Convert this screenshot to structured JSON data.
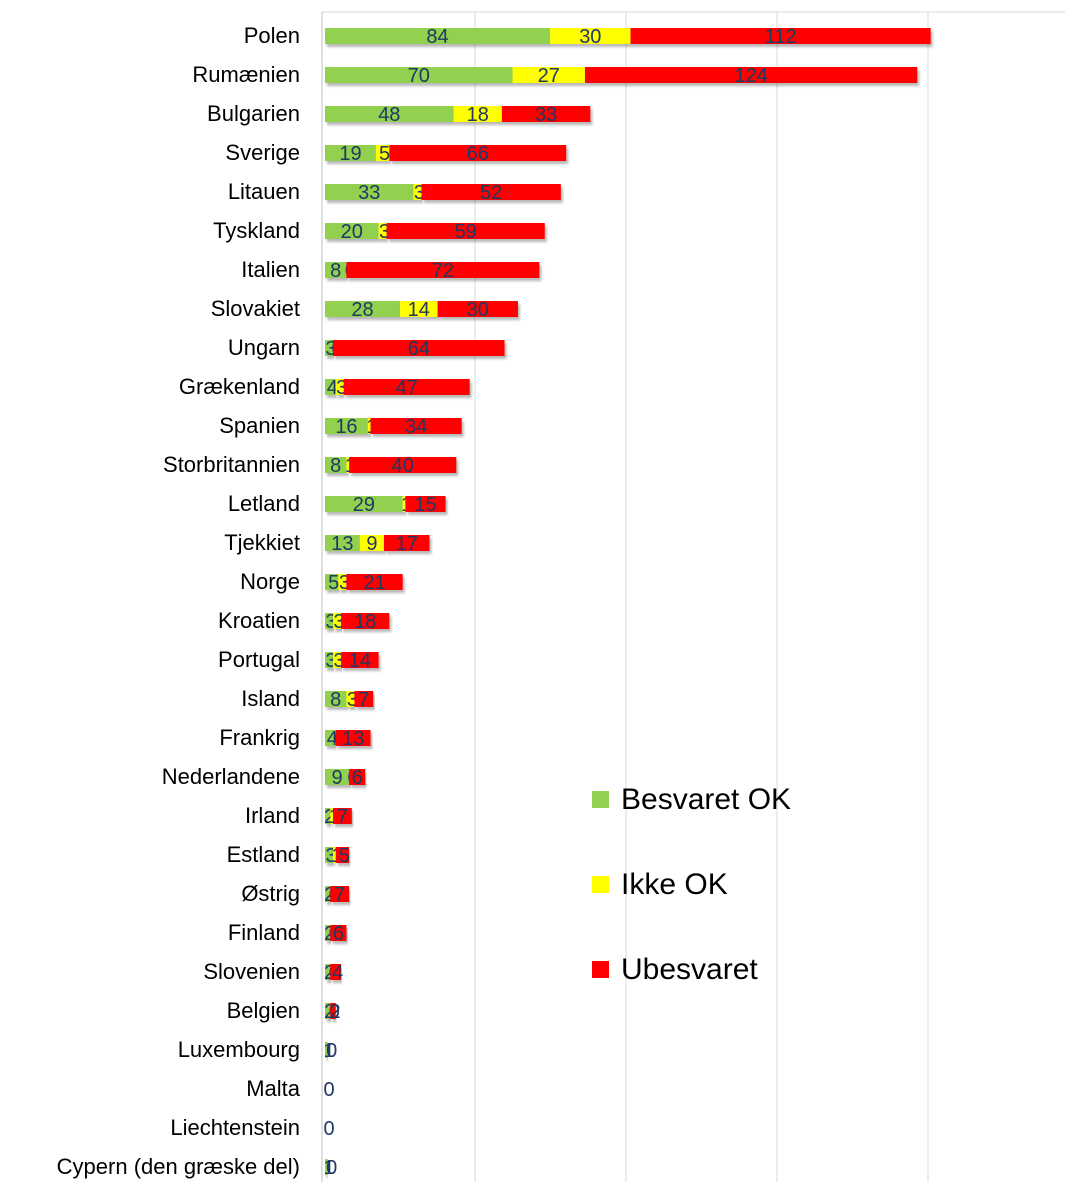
{
  "chart_data": {
    "type": "bar",
    "orientation": "horizontal",
    "stacked": true,
    "title": "",
    "xlabel": "",
    "ylabel": "",
    "xlim": [
      0,
      220
    ],
    "grid": "vertical",
    "legend_position": "right",
    "categories": [
      "Polen",
      "Rumænien",
      "Bulgarien",
      "Sverige",
      "Litauen",
      "Tyskland",
      "Italien",
      "Slovakiet",
      "Ungarn",
      "Grækenland",
      "Spanien",
      "Storbritannien",
      "Letland",
      "Tjekkiet",
      "Norge",
      "Kroatien",
      "Portugal",
      "Island",
      "Frankrig",
      "Nederlandene",
      "Irland",
      "Estland",
      "Østrig",
      "Finland",
      "Slovenien",
      "Belgien",
      "Luxembourg",
      "Malta",
      "Liechtenstein",
      "Cypern (den græske del)"
    ],
    "series": [
      {
        "name": "Besvaret OK",
        "color": "#92d050",
        "values": [
          84,
          70,
          48,
          19,
          33,
          20,
          8,
          28,
          3,
          4,
          16,
          8,
          29,
          13,
          5,
          3,
          3,
          8,
          4,
          9,
          2,
          3,
          2,
          2,
          2,
          2,
          1,
          0,
          0,
          1
        ]
      },
      {
        "name": "Ikke OK",
        "color": "#ffff00",
        "values": [
          30,
          27,
          18,
          5,
          3,
          3,
          0,
          14,
          0,
          3,
          1,
          1,
          1,
          9,
          3,
          3,
          3,
          3,
          0,
          0,
          1,
          1,
          0,
          0,
          0,
          0,
          0,
          0,
          0,
          0
        ]
      },
      {
        "name": "Ubesvaret",
        "color": "#ff0000",
        "values": [
          112,
          124,
          33,
          66,
          52,
          59,
          72,
          30,
          64,
          47,
          34,
          40,
          15,
          17,
          21,
          18,
          14,
          7,
          13,
          6,
          7,
          5,
          7,
          6,
          4,
          2,
          0,
          0,
          0,
          0
        ]
      }
    ],
    "data_labels": [
      [
        "84",
        "30",
        "112"
      ],
      [
        "70",
        "27",
        "124"
      ],
      [
        "48",
        "18",
        "33"
      ],
      [
        "19",
        "5",
        "66"
      ],
      [
        "33",
        "3",
        "52"
      ],
      [
        "20",
        "3",
        "59"
      ],
      [
        "8",
        "0",
        "72"
      ],
      [
        "28",
        "14",
        "30"
      ],
      [
        "3",
        "0",
        "64"
      ],
      [
        "4",
        "3",
        "47"
      ],
      [
        "16",
        "1",
        "34"
      ],
      [
        "8",
        "1",
        "40"
      ],
      [
        "29",
        "1",
        "15"
      ],
      [
        "13",
        "9",
        "17"
      ],
      [
        "5",
        "3",
        "21"
      ],
      [
        "3",
        "3",
        "18"
      ],
      [
        "3",
        "3",
        "14"
      ],
      [
        "8",
        "3",
        "7"
      ],
      [
        "4",
        "0",
        "13"
      ],
      [
        "9",
        "0",
        "6"
      ],
      [
        "2",
        "1",
        "7"
      ],
      [
        "3",
        "1",
        "5"
      ],
      [
        "2",
        "0",
        "7"
      ],
      [
        "2",
        "0",
        "6"
      ],
      [
        "2",
        "0",
        "4"
      ],
      [
        "2",
        "0",
        "2"
      ],
      [
        "1",
        "0",
        ""
      ],
      [
        "0",
        "",
        ""
      ],
      [
        "0",
        "",
        ""
      ],
      [
        "1",
        "0",
        ""
      ]
    ],
    "label_color": "#1f3864",
    "gridline_color": "#d9d9d9",
    "axis_color": "#bfbfbf"
  }
}
